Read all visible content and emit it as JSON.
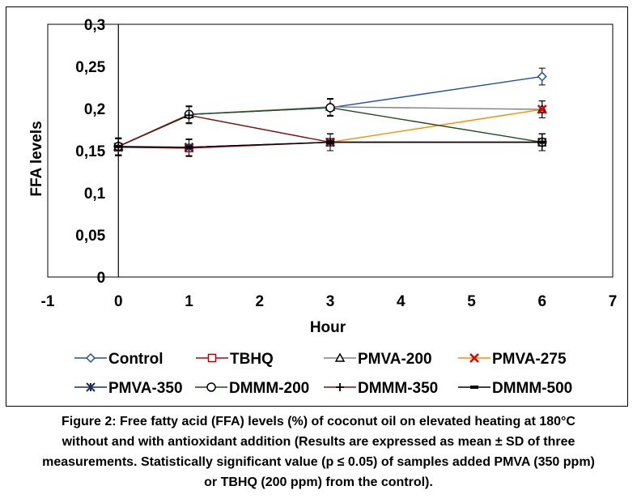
{
  "chart_data": {
    "type": "line",
    "title": "",
    "xlabel": "Hour",
    "ylabel": "FFA levels",
    "xlim": [
      -1,
      7
    ],
    "ylim": [
      0,
      0.3
    ],
    "x_ticks": [
      "-1",
      "0",
      "1",
      "2",
      "3",
      "4",
      "5",
      "6",
      "7"
    ],
    "y_ticks": [
      "0",
      "0,05",
      "0,1",
      "0,15",
      "0,2",
      "0,25",
      "0,3"
    ],
    "grid": false,
    "legend_position": "bottom",
    "x": [
      0,
      1,
      3,
      6
    ],
    "error": 0.01,
    "series": [
      {
        "name": "Control",
        "marker": "diamond",
        "color": "#1f4fa8",
        "values": [
          0.155,
          0.193,
          0.201,
          0.238
        ]
      },
      {
        "name": "TBHQ",
        "marker": "square",
        "color": "#c00000",
        "values": [
          0.154,
          0.153,
          0.16,
          0.16
        ]
      },
      {
        "name": "PMVA-200",
        "marker": "triangle",
        "color": "#808080",
        "values": [
          0.155,
          0.193,
          0.202,
          0.199
        ]
      },
      {
        "name": "PMVA-275",
        "marker": "x",
        "color": "#ff8c00",
        "values": [
          0.154,
          0.154,
          0.16,
          0.199
        ]
      },
      {
        "name": "PMVA-350",
        "marker": "star",
        "color": "#1f2a5a",
        "values": [
          0.154,
          0.154,
          0.16,
          0.16
        ]
      },
      {
        "name": "DMMM-200",
        "marker": "circle",
        "color": "#1a4d1a",
        "values": [
          0.155,
          0.193,
          0.201,
          0.16
        ]
      },
      {
        "name": "DMMM-350",
        "marker": "plus",
        "color": "#7a1010",
        "values": [
          0.155,
          0.192,
          0.16,
          0.16
        ]
      },
      {
        "name": "DMMM-500",
        "marker": "dash",
        "color": "#000000",
        "values": [
          0.155,
          0.154,
          0.16,
          0.16
        ]
      }
    ]
  },
  "caption": {
    "line1": "Figure 2: Free fatty acid (FFA) levels (%) of coconut oil on elevated heating at 180°C",
    "line2": "without and with antioxidant addition (Results are expressed as mean ± SD of three",
    "line3": "measurements. Statistically significant value (p ≤ 0.05) of samples added PMVA (350 ppm)",
    "line4": "or TBHQ (200 ppm) from the control)."
  }
}
